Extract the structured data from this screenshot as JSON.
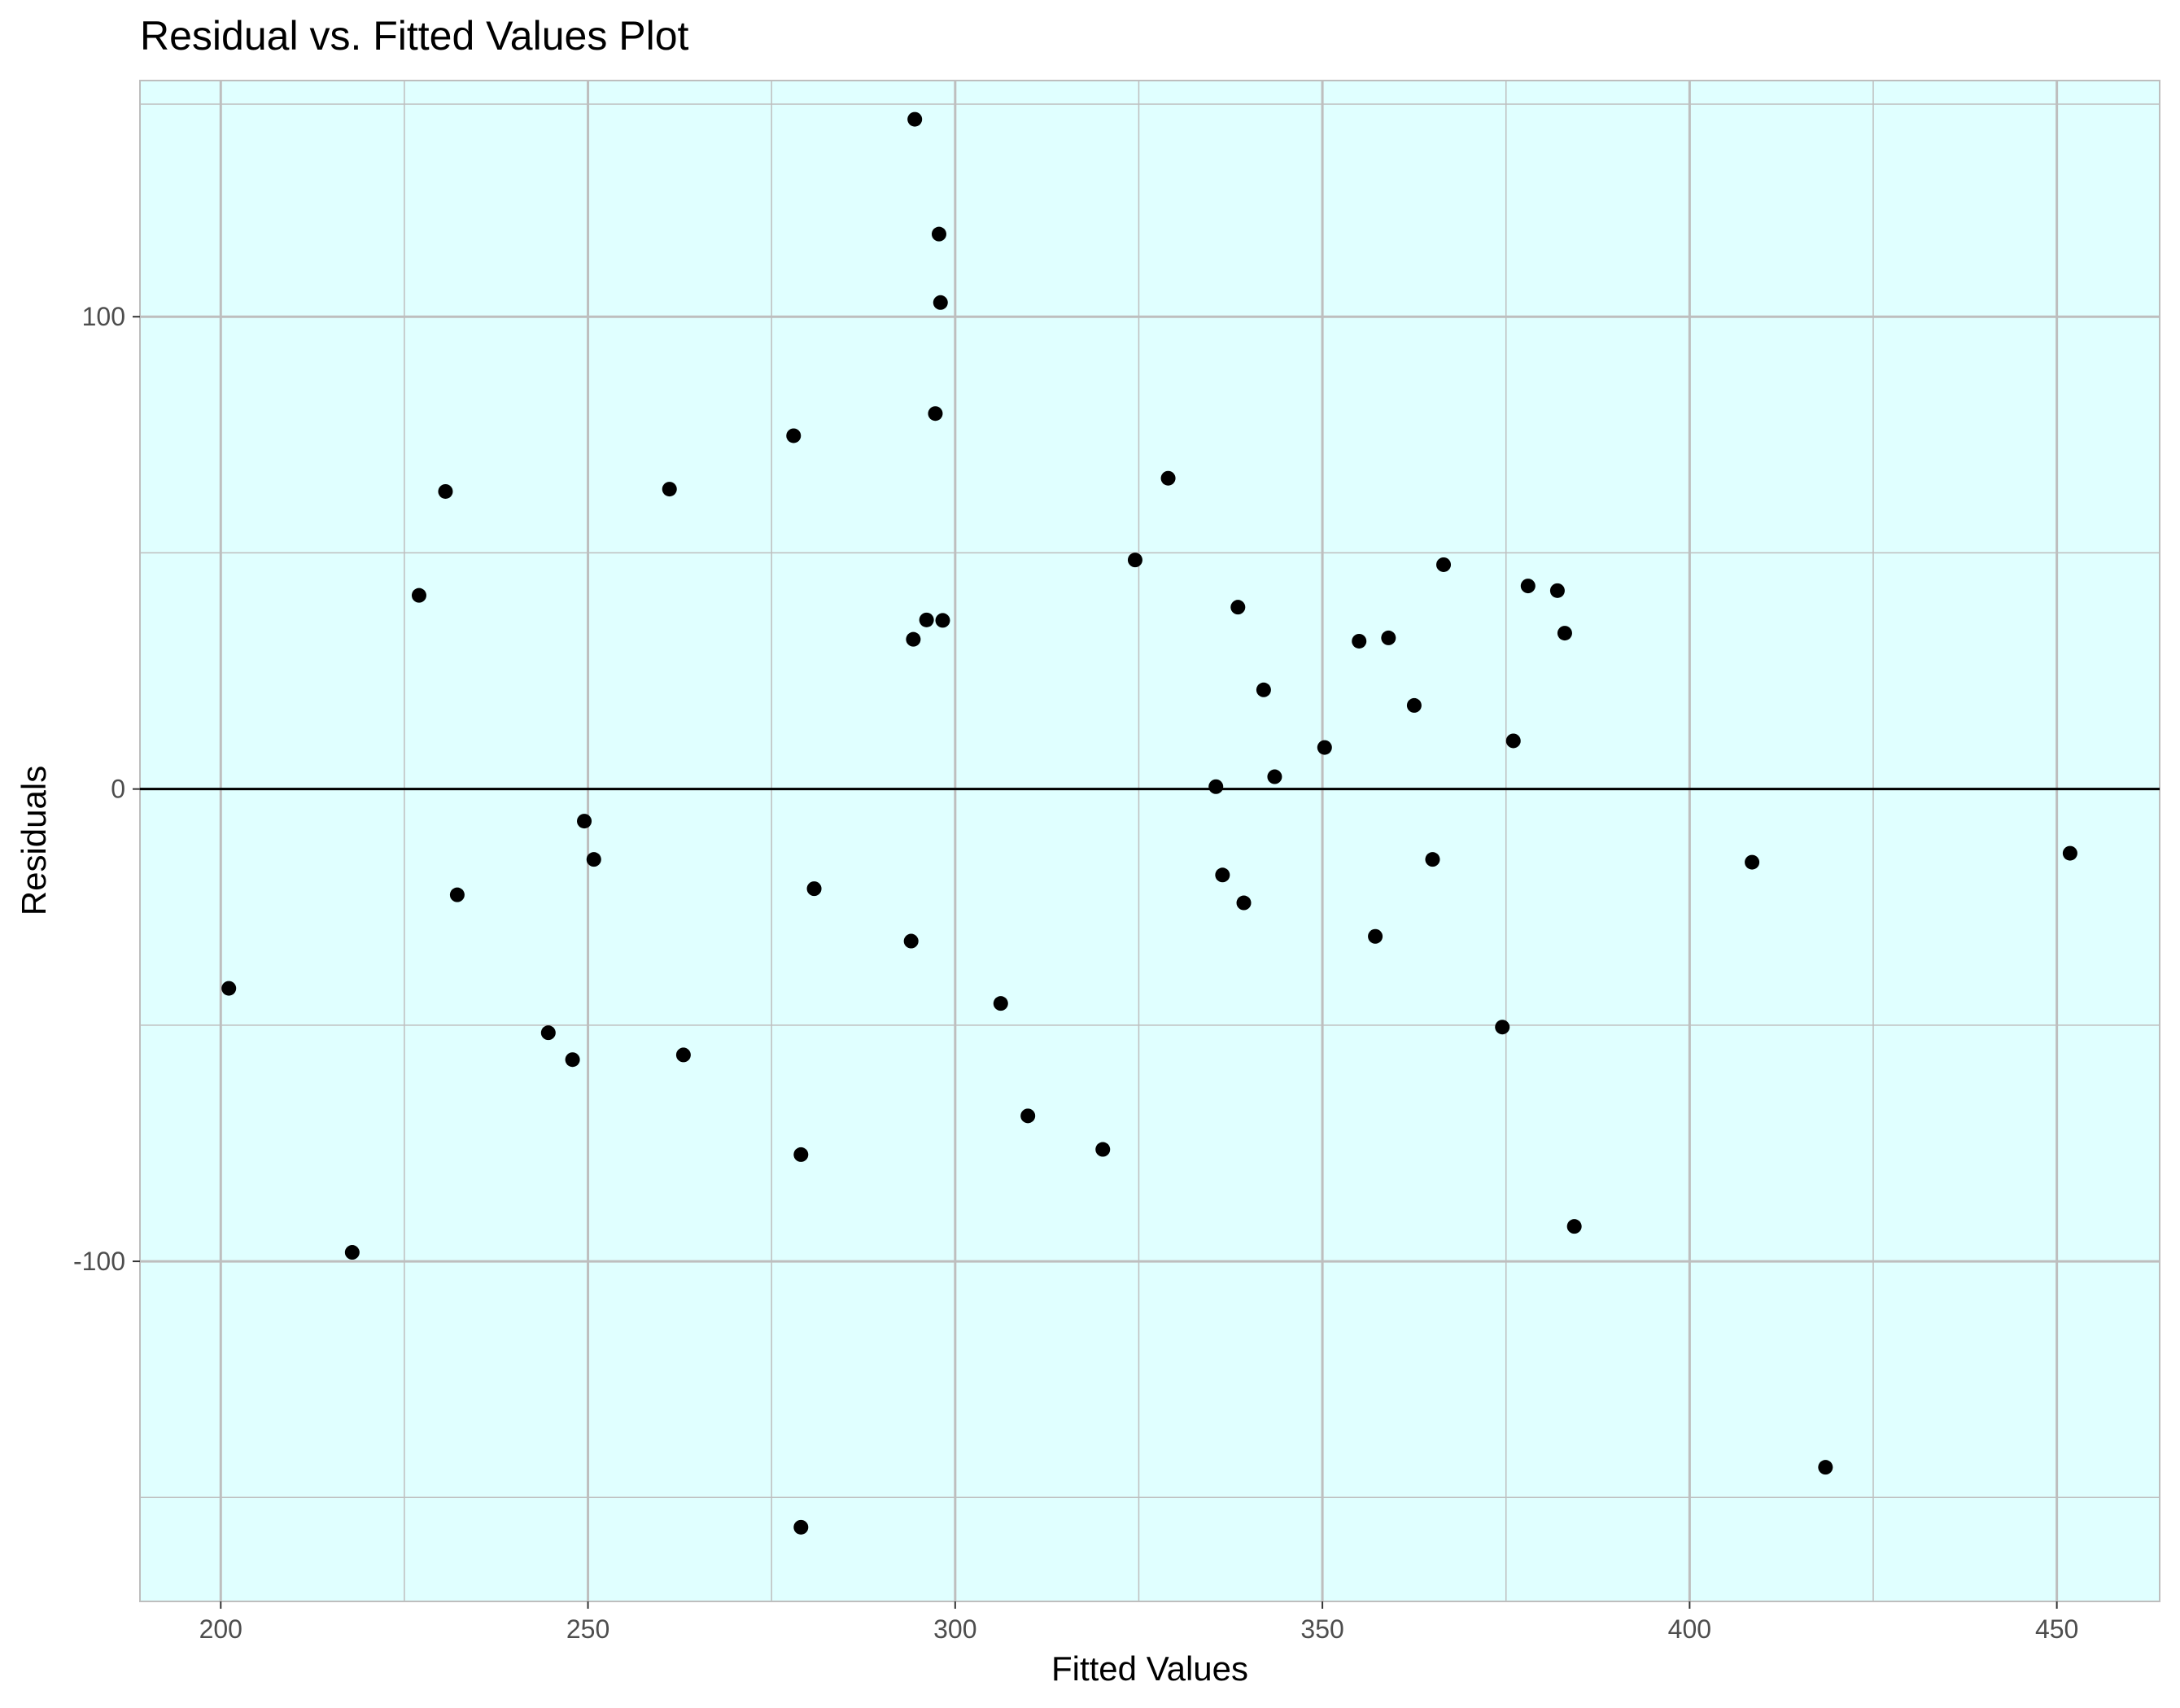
{
  "chart_data": {
    "type": "scatter",
    "title": "Residual vs. Fitted Values Plot",
    "xlabel": "Fitted Values",
    "ylabel": "Residuals",
    "xlim": [
      189,
      464
    ],
    "ylim": [
      -172,
      150
    ],
    "x_ticks": [
      200,
      250,
      300,
      350,
      400,
      450
    ],
    "y_ticks": [
      -100,
      0,
      100
    ],
    "x_tick_labels": [
      "200",
      "250",
      "300",
      "350",
      "400",
      "450"
    ],
    "y_tick_labels": [
      "-100",
      "0",
      "100"
    ],
    "x_minor_ticks": [
      225,
      275,
      325,
      375,
      425
    ],
    "y_minor_ticks": [
      -150,
      -50,
      50,
      145
    ],
    "reference_line_y": 0,
    "grid": true,
    "background_color": "#e0ffff",
    "grid_color": "#bebebe",
    "point_color": "#000000",
    "reference_line_color": "#000000",
    "points": [
      {
        "x": 294.5,
        "y": 141.8
      },
      {
        "x": 297.8,
        "y": 117.5
      },
      {
        "x": 298.0,
        "y": 103.0
      },
      {
        "x": 297.3,
        "y": 79.5
      },
      {
        "x": 278.0,
        "y": 74.8
      },
      {
        "x": 329.0,
        "y": 65.8
      },
      {
        "x": 230.6,
        "y": 63.0
      },
      {
        "x": 261.1,
        "y": 63.5
      },
      {
        "x": 324.5,
        "y": 48.5
      },
      {
        "x": 366.5,
        "y": 47.5
      },
      {
        "x": 378.0,
        "y": 43.0
      },
      {
        "x": 382.0,
        "y": 42.0
      },
      {
        "x": 227.0,
        "y": 41.0
      },
      {
        "x": 338.5,
        "y": 38.5
      },
      {
        "x": 296.1,
        "y": 35.8
      },
      {
        "x": 298.3,
        "y": 35.7
      },
      {
        "x": 294.3,
        "y": 31.7
      },
      {
        "x": 383.0,
        "y": 33.0
      },
      {
        "x": 359.0,
        "y": 32.0
      },
      {
        "x": 355.0,
        "y": 31.3
      },
      {
        "x": 342.0,
        "y": 21.0
      },
      {
        "x": 362.5,
        "y": 17.7
      },
      {
        "x": 376.0,
        "y": 10.2
      },
      {
        "x": 350.3,
        "y": 8.8
      },
      {
        "x": 343.5,
        "y": 2.6
      },
      {
        "x": 335.5,
        "y": 0.5
      },
      {
        "x": 249.5,
        "y": -6.8
      },
      {
        "x": 250.8,
        "y": -14.9
      },
      {
        "x": 365.0,
        "y": -14.9
      },
      {
        "x": 408.5,
        "y": -15.5
      },
      {
        "x": 451.8,
        "y": -13.6
      },
      {
        "x": 336.4,
        "y": -18.2
      },
      {
        "x": 280.8,
        "y": -21.1
      },
      {
        "x": 232.2,
        "y": -22.4
      },
      {
        "x": 339.3,
        "y": -24.1
      },
      {
        "x": 357.2,
        "y": -31.2
      },
      {
        "x": 294.0,
        "y": -32.2
      },
      {
        "x": 201.1,
        "y": -42.2
      },
      {
        "x": 306.2,
        "y": -45.4
      },
      {
        "x": 374.5,
        "y": -50.4
      },
      {
        "x": 244.6,
        "y": -51.6
      },
      {
        "x": 263.0,
        "y": -56.3
      },
      {
        "x": 247.9,
        "y": -57.3
      },
      {
        "x": 309.9,
        "y": -69.2
      },
      {
        "x": 320.1,
        "y": -76.3
      },
      {
        "x": 279.0,
        "y": -77.4
      },
      {
        "x": 384.3,
        "y": -92.6
      },
      {
        "x": 217.9,
        "y": -98.1
      },
      {
        "x": 418.5,
        "y": -143.6
      },
      {
        "x": 279.0,
        "y": -156.3
      }
    ]
  }
}
